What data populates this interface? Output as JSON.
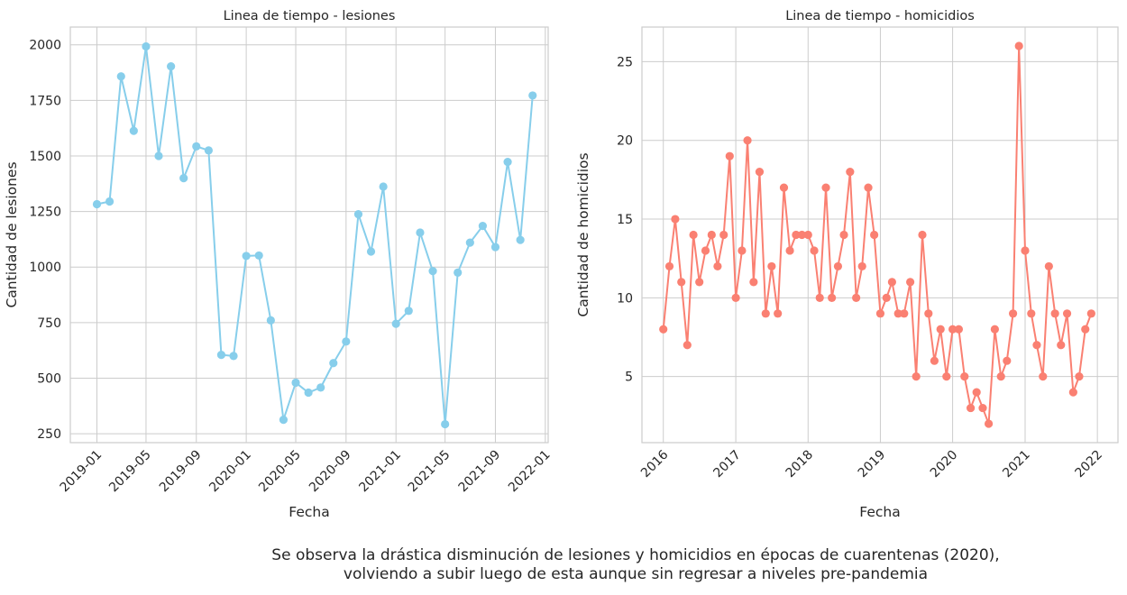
{
  "chart_data": [
    {
      "type": "line",
      "title": "Linea de tiempo - lesiones",
      "xlabel": "Fecha",
      "ylabel": "Cantidad de lesiones",
      "color": "#87CEEB",
      "grid": true,
      "x_tick_labels": [
        "2019-01",
        "2019-05",
        "2019-09",
        "2020-01",
        "2020-05",
        "2020-09",
        "2021-01",
        "2021-05",
        "2021-09",
        "2022-01"
      ],
      "y_ticks": [
        250,
        500,
        750,
        1000,
        1250,
        1500,
        1750,
        2000
      ],
      "xlim": [
        "2018-10-28",
        "2022-01-08"
      ],
      "ylim": [
        210,
        2080
      ],
      "series": [
        {
          "x": [
            "2019-01",
            "2019-02",
            "2019-03",
            "2019-04",
            "2019-05",
            "2019-06",
            "2019-07",
            "2019-08",
            "2019-09",
            "2019-10",
            "2019-11",
            "2019-12",
            "2020-01",
            "2020-02",
            "2020-03",
            "2020-04",
            "2020-05",
            "2020-06",
            "2020-07",
            "2020-08",
            "2020-09",
            "2020-10",
            "2020-11",
            "2020-12",
            "2021-01",
            "2021-02",
            "2021-03",
            "2021-04",
            "2021-05",
            "2021-06",
            "2021-07",
            "2021-08",
            "2021-09",
            "2021-10",
            "2021-11",
            "2021-12"
          ],
          "values": [
            1283,
            1295,
            1858,
            1613,
            1993,
            1500,
            1903,
            1400,
            1543,
            1525,
            605,
            600,
            1050,
            1052,
            760,
            313,
            480,
            435,
            458,
            568,
            665,
            1238,
            1070,
            1362,
            745,
            803,
            1155,
            982,
            293,
            975,
            1110,
            1185,
            1090,
            1473,
            1122,
            1772
          ]
        }
      ]
    },
    {
      "type": "line",
      "title": "Linea de tiempo - homicidios",
      "xlabel": "Fecha",
      "ylabel": "Cantidad de homicidios",
      "color": "#FA8072",
      "grid": true,
      "x_tick_labels": [
        "2016",
        "2017",
        "2018",
        "2019",
        "2020",
        "2021",
        "2022"
      ],
      "y_ticks": [
        5,
        10,
        15,
        20,
        25
      ],
      "xlim": [
        "2015-09-15",
        "2022-04-15"
      ],
      "ylim": [
        0.8,
        27.2
      ],
      "series": [
        {
          "x": [
            "2016-01",
            "2016-02",
            "2016-03",
            "2016-04",
            "2016-05",
            "2016-06",
            "2016-07",
            "2016-08",
            "2016-09",
            "2016-10",
            "2016-11",
            "2016-12",
            "2017-01",
            "2017-02",
            "2017-03",
            "2017-04",
            "2017-05",
            "2017-06",
            "2017-07",
            "2017-08",
            "2017-09",
            "2017-10",
            "2017-11",
            "2017-12",
            "2018-01",
            "2018-02",
            "2018-03",
            "2018-04",
            "2018-05",
            "2018-06",
            "2018-07",
            "2018-08",
            "2018-09",
            "2018-10",
            "2018-11",
            "2018-12",
            "2019-01",
            "2019-02",
            "2019-03",
            "2019-04",
            "2019-05",
            "2019-06",
            "2019-07",
            "2019-08",
            "2019-09",
            "2019-10",
            "2019-11",
            "2019-12",
            "2020-01",
            "2020-02",
            "2020-03",
            "2020-04",
            "2020-05",
            "2020-06",
            "2020-07",
            "2020-08",
            "2020-09",
            "2020-10",
            "2020-11",
            "2020-12",
            "2021-01",
            "2021-02",
            "2021-03",
            "2021-04",
            "2021-05",
            "2021-06",
            "2021-07",
            "2021-08",
            "2021-09",
            "2021-10",
            "2021-11",
            "2021-12"
          ],
          "values": [
            8,
            12,
            15,
            11,
            7,
            14,
            11,
            13,
            14,
            12,
            14,
            19,
            10,
            13,
            20,
            11,
            18,
            9,
            12,
            9,
            17,
            13,
            14,
            14,
            14,
            13,
            10,
            17,
            10,
            12,
            14,
            18,
            10,
            12,
            17,
            14,
            9,
            10,
            11,
            9,
            9,
            11,
            5,
            14,
            9,
            6,
            8,
            5,
            8,
            8,
            5,
            3,
            4,
            3,
            2,
            8,
            5,
            6,
            9,
            26,
            13,
            9,
            7,
            5,
            12,
            9,
            7,
            9,
            4,
            5,
            8,
            9
          ]
        }
      ]
    }
  ],
  "caption": {
    "line1": "Se observa la drástica disminución de lesiones y homicidios en épocas de cuarentenas (2020),",
    "line2": "volviendo a subir luego de esta aunque sin regresar a niveles pre-pandemia"
  }
}
